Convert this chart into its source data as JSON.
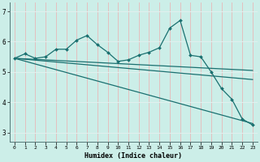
{
  "xlabel": "Humidex (Indice chaleur)",
  "xlim": [
    -0.5,
    23.5
  ],
  "ylim": [
    2.7,
    7.3
  ],
  "yticks": [
    3,
    4,
    5,
    6,
    7
  ],
  "xticks": [
    0,
    1,
    2,
    3,
    4,
    5,
    6,
    7,
    8,
    9,
    10,
    11,
    12,
    13,
    14,
    15,
    16,
    17,
    18,
    19,
    20,
    21,
    22,
    23
  ],
  "background_color": "#cceee8",
  "grid_color_v": "#e8b8b8",
  "grid_color_h": "#e0f0ee",
  "line_color": "#1a7070",
  "line_wavy": {
    "x": [
      0,
      1,
      2,
      3,
      4,
      5,
      6,
      7,
      8,
      9,
      10,
      11,
      12,
      13,
      14,
      15,
      16,
      17,
      18,
      19,
      20,
      21,
      22,
      23
    ],
    "y": [
      5.45,
      5.6,
      5.45,
      5.5,
      5.75,
      5.75,
      6.05,
      6.2,
      5.9,
      5.65,
      5.35,
      5.4,
      5.55,
      5.65,
      5.8,
      6.45,
      6.7,
      5.55,
      5.5,
      5.0,
      4.45,
      4.1,
      3.45,
      3.25
    ]
  },
  "line_flat1": {
    "x": [
      0,
      23
    ],
    "y": [
      5.45,
      5.05
    ]
  },
  "line_flat2": {
    "x": [
      0,
      23
    ],
    "y": [
      5.45,
      4.75
    ]
  },
  "line_decline": {
    "x": [
      0,
      23
    ],
    "y": [
      5.45,
      3.3
    ]
  }
}
